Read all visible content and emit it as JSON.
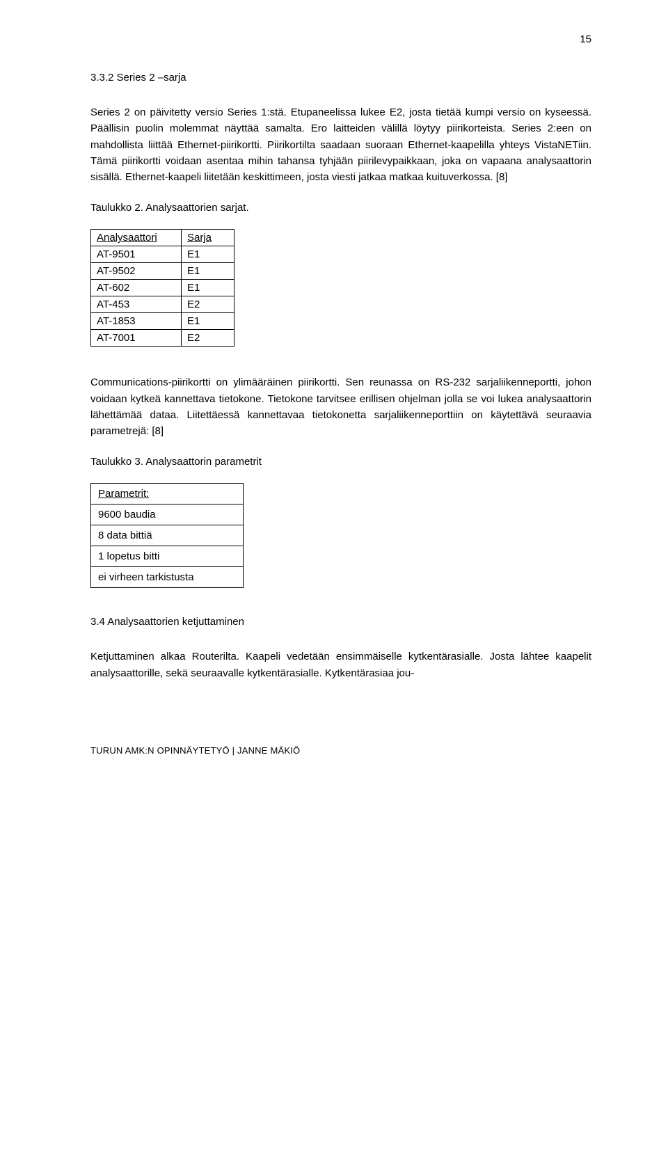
{
  "page_number": "15",
  "section_heading": "3.3.2 Series 2 –sarja",
  "para1": "Series 2 on päivitetty versio Series 1:stä. Etupaneelissa lukee E2, josta tietää kumpi versio on kyseessä. Päällisin puolin molemmat näyttää samalta. Ero laitteiden välillä löytyy piirikorteista. Series 2:een on mahdollista liittää Ethernet-piirikortti. Piirikortilta saadaan suoraan Ethernet-kaapelilla yhteys VistaNETiin. Tämä piirikortti voidaan asentaa mihin tahansa tyhjään piirilevypaikkaan, joka on vapaana analysaattorin sisällä. Ethernet-kaapeli liitetään keskittimeen, josta viesti jatkaa matkaa kuituverkossa. [8]",
  "table1_caption": "Taulukko 2. Analysaattorien sarjat.",
  "table1": {
    "head_a": "Analysaattori",
    "head_b": "Sarja",
    "rows": [
      {
        "a": "AT-9501",
        "b": "E1"
      },
      {
        "a": "AT-9502",
        "b": "E1"
      },
      {
        "a": "AT-602",
        "b": "E1"
      },
      {
        "a": "AT-453",
        "b": "E2"
      },
      {
        "a": "AT-1853",
        "b": "E1"
      },
      {
        "a": "AT-7001",
        "b": "E2"
      }
    ]
  },
  "para2": "Communications-piirikortti on ylimääräinen piirikortti. Sen reunassa on RS-232 sarjaliikenneportti, johon voidaan kytkeä kannettava tietokone. Tietokone tarvitsee erillisen ohjelman jolla se voi lukea analysaattorin lähettämää dataa. Liitettäessä kannettavaa tietokonetta sarjaliikenneporttiin on käytettävä seuraavia parametrejä: [8]",
  "table3_caption": "Taulukko 3. Analysaattorin parametrit",
  "table3": {
    "header": "Parametrit:",
    "rows": [
      "9600 baudia",
      "8 data bittiä",
      "1 lopetus bitti",
      "ei virheen tarkistusta"
    ]
  },
  "sub_heading": "3.4 Analysaattorien ketjuttaminen",
  "para3": "Ketjuttaminen alkaa Routerilta. Kaapeli vedetään ensimmäiselle kytkentärasialle. Josta lähtee kaapelit analysaattorille, sekä seuraavalle kytkentärasialle. Kytkentärasiaa jou-",
  "footer": "TURUN AMK:N OPINNÄYTETYÖ | JANNE MÄKIÖ"
}
